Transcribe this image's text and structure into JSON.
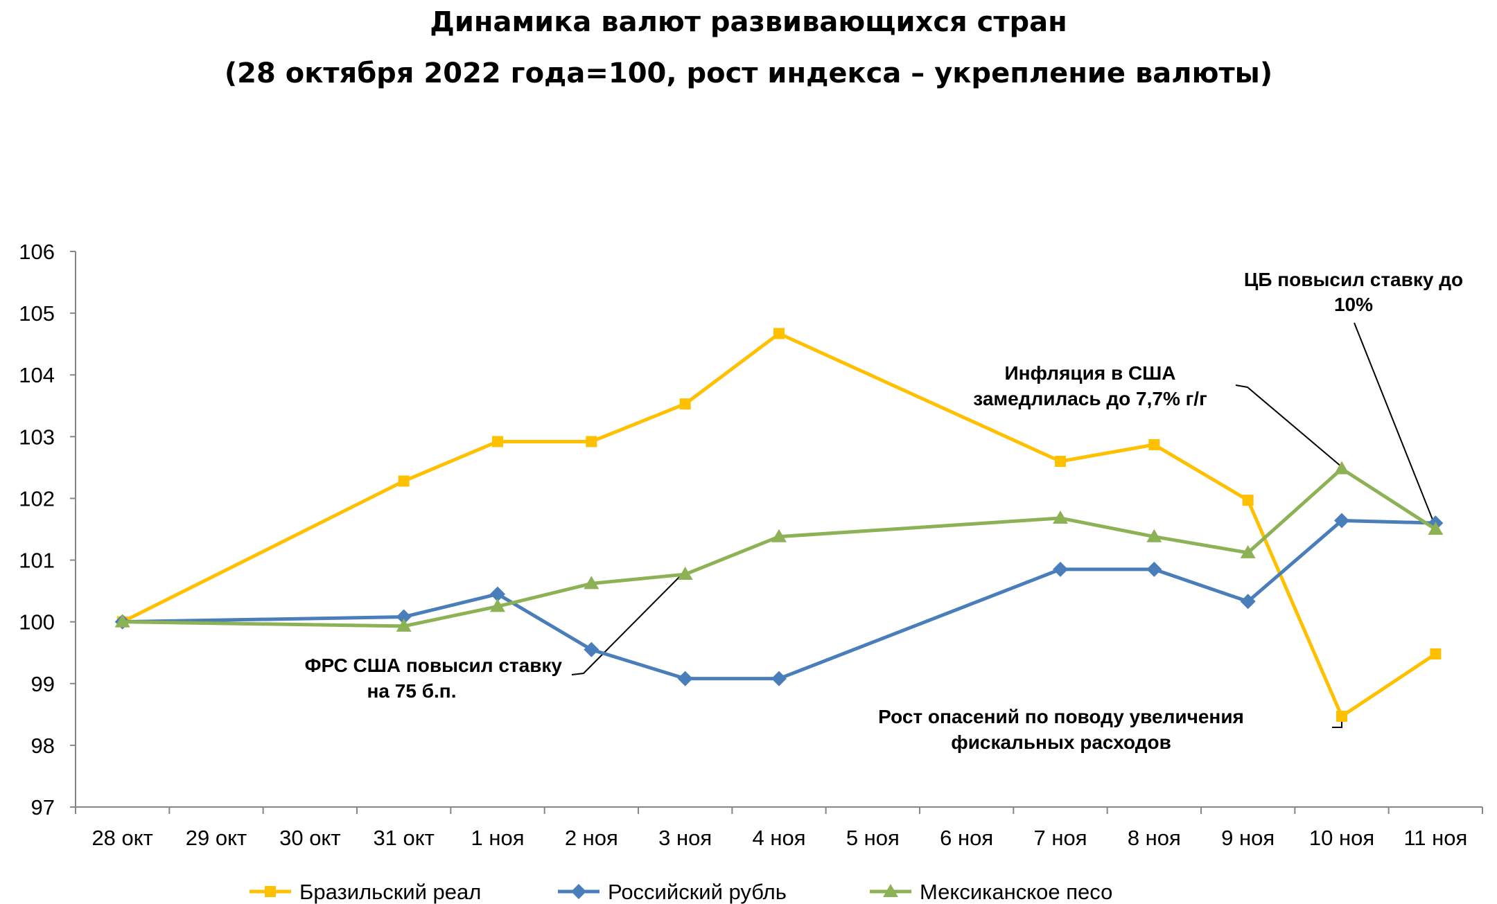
{
  "chart_data": {
    "type": "line",
    "title": "Динамика валют развивающихся стран",
    "subtitle": "(28 октября 2022 года=100, рост индекса – укрепление валюты)",
    "xlabel": "",
    "ylabel": "",
    "ylim": [
      97,
      106
    ],
    "yticks": [
      "97",
      "98",
      "99",
      "100",
      "101",
      "102",
      "103",
      "104",
      "105",
      "106"
    ],
    "categories": [
      "28 окт",
      "29 окт",
      "30 окт",
      "31 окт",
      "1 ноя",
      "2 ноя",
      "3 ноя",
      "4 ноя",
      "5 ноя",
      "6 ноя",
      "7 ноя",
      "8 ноя",
      "9 ноя",
      "10 ноя",
      "11 ноя"
    ],
    "grid": false,
    "legend_position": "bottom",
    "series": [
      {
        "name": "Бразильский реал",
        "color": "#FFC000",
        "marker": "square",
        "values": [
          100,
          null,
          null,
          102.28,
          102.92,
          102.92,
          103.53,
          104.67,
          null,
          null,
          102.6,
          102.87,
          101.97,
          98.47,
          99.48
        ]
      },
      {
        "name": "Российский рубль",
        "color": "#4A7EBB",
        "marker": "diamond",
        "values": [
          100,
          null,
          null,
          100.08,
          100.45,
          99.55,
          99.08,
          99.08,
          null,
          null,
          100.85,
          100.85,
          100.33,
          101.64,
          101.6
        ]
      },
      {
        "name": "Мексиканское песо",
        "color": "#8DB255",
        "marker": "triangle",
        "values": [
          100,
          null,
          null,
          99.93,
          100.25,
          100.62,
          100.77,
          101.38,
          null,
          null,
          101.68,
          101.38,
          101.12,
          102.48,
          101.5
        ]
      }
    ],
    "annotations": [
      {
        "lines": [
          "ЦБ повысил ставку до",
          "10%"
        ],
        "target": "11 ноя"
      },
      {
        "lines": [
          "Инфляция в США",
          "замедлилась до 7,7% г/г"
        ],
        "target": "10 ноя"
      },
      {
        "lines": [
          "ФРС США повысил ставку",
          "на 75 б.п."
        ],
        "target": "3 ноя"
      },
      {
        "lines": [
          "Рост опасений по поводу увеличения",
          "фискальных расходов"
        ],
        "target": "10 ноя"
      }
    ]
  }
}
